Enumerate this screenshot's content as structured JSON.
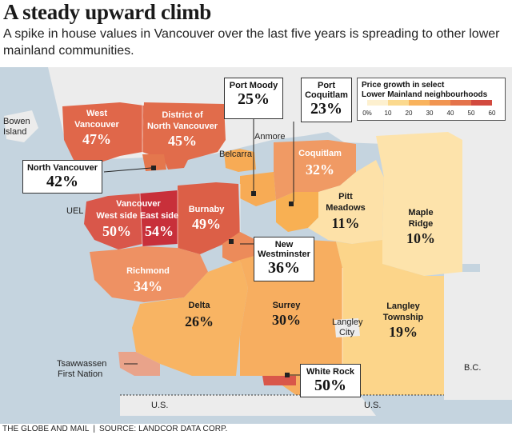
{
  "title": "A steady upward climb",
  "subtitle": "A spike in house values in Vancouver over the last five years is spreading to other lower mainland communities.",
  "credit": {
    "publisher": "THE GLOBE AND MAIL",
    "source": "SOURCE: LANDCOR DATA CORP."
  },
  "legend": {
    "title_line1": "Price growth in select",
    "title_line2": "Lower Mainland neighbourhoods",
    "ticks": [
      "0%",
      "10",
      "20",
      "30",
      "40",
      "50",
      "60"
    ],
    "colors": [
      "#fdf0cf",
      "#fbd98e",
      "#f9b35d",
      "#f19552",
      "#e4734b",
      "#d24a3f"
    ]
  },
  "regions": {
    "west_vancouver": {
      "name_line1": "West",
      "name_line2": "Vancouver",
      "value": "47%",
      "color": "#e0674a"
    },
    "district_north_vancouver": {
      "name_line1": "District of",
      "name_line2": "North Vancouver",
      "value": "45%",
      "color": "#e16c4b"
    },
    "north_vancouver": {
      "name": "North Vancouver",
      "value": "42%",
      "color": "#e4774d"
    },
    "vancouver": {
      "name": "Vancouver"
    },
    "vancouver_west": {
      "name": "West side",
      "value": "50%",
      "color": "#d9574a"
    },
    "vancouver_east": {
      "name": "East side",
      "value": "54%",
      "color": "#c8303a"
    },
    "burnaby": {
      "name": "Burnaby",
      "value": "49%",
      "color": "#dc5f47"
    },
    "richmond": {
      "name": "Richmond",
      "value": "34%",
      "color": "#ee9163"
    },
    "coquitlam": {
      "name": "Coquitlam",
      "value": "32%",
      "color": "#f09a64"
    },
    "port_moody": {
      "name": "Port Moody",
      "value": "25%",
      "color": "#f7ab55"
    },
    "port_coquitlam": {
      "name_line1": "Port",
      "name_line2": "Coquitlam",
      "value": "23%",
      "color": "#f8b053"
    },
    "pitt_meadows": {
      "name_line1": "Pitt",
      "name_line2": "Meadows",
      "value": "11%",
      "color": "#fde1a8"
    },
    "maple_ridge": {
      "name_line1": "Maple",
      "name_line2": "Ridge",
      "value": "10%",
      "color": "#fde3ab"
    },
    "new_westminster": {
      "name_line1": "New",
      "name_line2": "Westminster",
      "value": "36%",
      "color": "#ec8b5a"
    },
    "delta": {
      "name": "Delta",
      "value": "26%",
      "color": "#f8b463"
    },
    "surrey": {
      "name": "Surrey",
      "value": "30%",
      "color": "#f7ae60"
    },
    "langley_city": {
      "name_line1": "Langley",
      "name_line2": "City"
    },
    "langley_township": {
      "name_line1": "Langley",
      "name_line2": "Township",
      "value": "19%",
      "color": "#fcd58a"
    },
    "white_rock": {
      "name": "White Rock",
      "value": "50%",
      "color": "#d9574a"
    }
  },
  "places": {
    "bowen_island_line1": "Bowen",
    "bowen_island_line2": "Island",
    "anmore": "Anmore",
    "belcarra": "Belcarra",
    "uel": "UEL",
    "tsawwassen_line1": "Tsawwassen",
    "tsawwassen_line2": "First Nation",
    "bc": "B.C.",
    "us_west": "U.S.",
    "us_east": "U.S."
  },
  "map_colors": {
    "water": "#c5d4df",
    "land": "#ececec",
    "tsawwassen": "#e9a38a"
  }
}
